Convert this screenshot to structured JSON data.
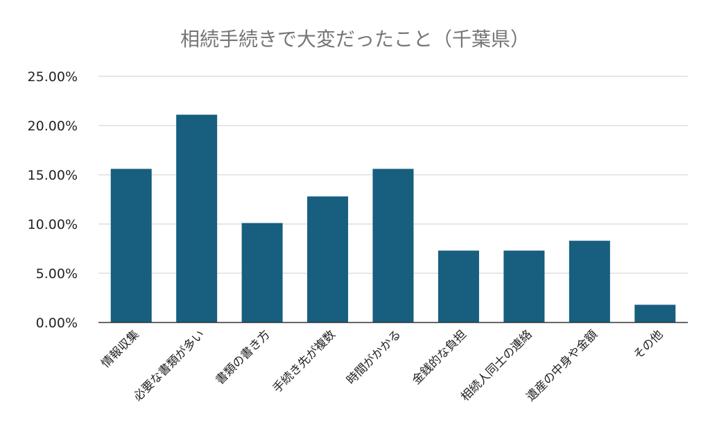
{
  "chart_data": {
    "type": "bar",
    "title": "相続手続きで大変だったこと（千葉県）",
    "xlabel": "",
    "ylabel": "",
    "categories": [
      "情報収集",
      "必要な書類が多い",
      "書類の書き方",
      "手続き先が複数",
      "時間がかかる",
      "金銭的な負担",
      "相続人同士の連絡",
      "遺産の中身や金額",
      "その他"
    ],
    "values": [
      15.6,
      21.1,
      10.1,
      12.8,
      15.6,
      7.3,
      7.3,
      8.3,
      1.8
    ],
    "ylim": [
      0,
      25
    ],
    "yticks": [
      "0.00%",
      "5.00%",
      "10.00%",
      "15.00%",
      "20.00%",
      "25.00%"
    ],
    "grid": true,
    "legend": "none",
    "bar_color": "#175E7F"
  }
}
